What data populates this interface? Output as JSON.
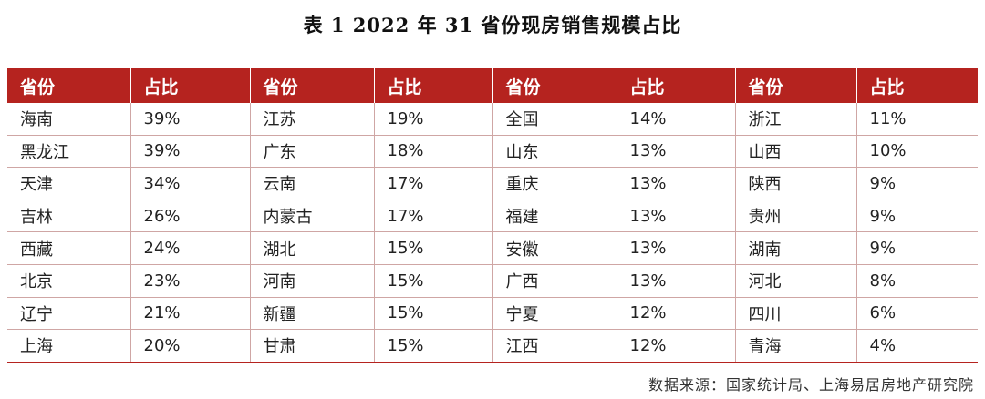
{
  "title": "表 1   2022 年 31 省份现房销售规模占比",
  "headers": [
    "省份",
    "占比",
    "省份",
    "占比",
    "省份",
    "占比",
    "省份",
    "占比"
  ],
  "rows": [
    [
      "海南",
      "39%",
      "江苏",
      "19%",
      "全国",
      "14%",
      "浙江",
      "11%"
    ],
    [
      "黑龙江",
      "39%",
      "广东",
      "18%",
      "山东",
      "13%",
      "山西",
      "10%"
    ],
    [
      "天津",
      "34%",
      "云南",
      "17%",
      "重庆",
      "13%",
      "陕西",
      "9%"
    ],
    [
      "吉林",
      "26%",
      "内蒙古",
      "17%",
      "福建",
      "13%",
      "贵州",
      "9%"
    ],
    [
      "西藏",
      "24%",
      "湖北",
      "15%",
      "安徽",
      "13%",
      "湖南",
      "9%"
    ],
    [
      "北京",
      "23%",
      "河南",
      "15%",
      "广西",
      "13%",
      "河北",
      "8%"
    ],
    [
      "辽宁",
      "21%",
      "新疆",
      "15%",
      "宁夏",
      "12%",
      "四川",
      "6%"
    ],
    [
      "上海",
      "20%",
      "甘肃",
      "15%",
      "江西",
      "12%",
      "青海",
      "4%"
    ]
  ],
  "source": "数据来源：国家统计局、上海易居房地产研究院",
  "colors": {
    "header_bg": "#b5231f",
    "header_text": "#ffffff"
  }
}
